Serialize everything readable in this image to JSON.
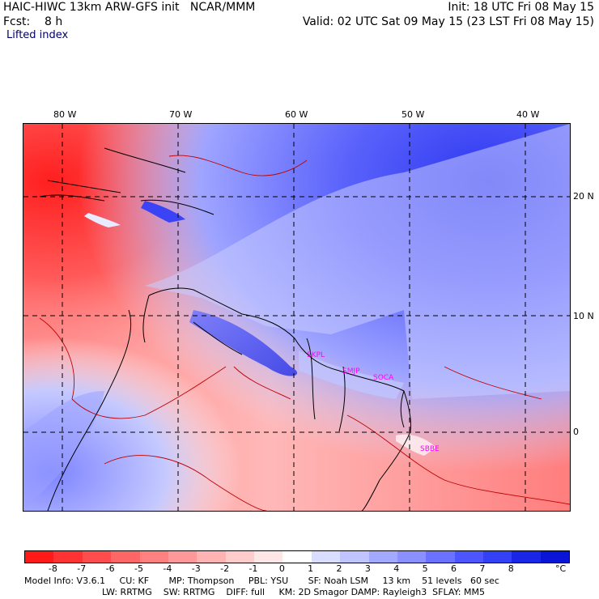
{
  "header": {
    "line1_left": "HAIC-HIWC 13km ARW-GFS init   NCAR/MMM",
    "line1_right": "Init: 18 UTC Fri 08 May 15",
    "line2_left": "Fcst:    8 h",
    "line2_right": "Valid: 02 UTC Sat 09 May 15 (23 LST Fri 08 May 15)",
    "field": "Lifted index"
  },
  "lon_labels": [
    "80 W",
    "70 W",
    "60 W",
    "50 W",
    "40 W"
  ],
  "lat_labels": [
    "20 N",
    "10 N",
    "0"
  ],
  "stations": [
    "SKPL",
    "SMJP",
    "SOCA",
    "SBBE"
  ],
  "colorbar": {
    "ticks": [
      "-8",
      "-7",
      "-6",
      "-5",
      "-4",
      "-3",
      "-2",
      "-1",
      "0",
      "1",
      "2",
      "3",
      "4",
      "5",
      "6",
      "7",
      "8"
    ],
    "unit": "°C",
    "colors": [
      "#ff1a1a",
      "#ff3333",
      "#ff4d4d",
      "#ff6666",
      "#ff8080",
      "#ff9999",
      "#ffb3b3",
      "#ffcccc",
      "#ffe6e6",
      "#ffffff",
      "#d9ddff",
      "#bfc4ff",
      "#a3a9ff",
      "#8a90ff",
      "#6b72ff",
      "#4d55ff",
      "#3340f5",
      "#1a26e6",
      "#0a14d6"
    ]
  },
  "footer": {
    "line1": "Model Info: V3.6.1     CU: KF       MP: Thompson     PBL: YSU       SF: Noah LSM     13 km    51 levels   60 sec",
    "line2": "LW: RRTMG    SW: RRTMG    DIFF: full     KM: 2D Smagor DAMP: Rayleigh3  SFLAY: MM5"
  }
}
